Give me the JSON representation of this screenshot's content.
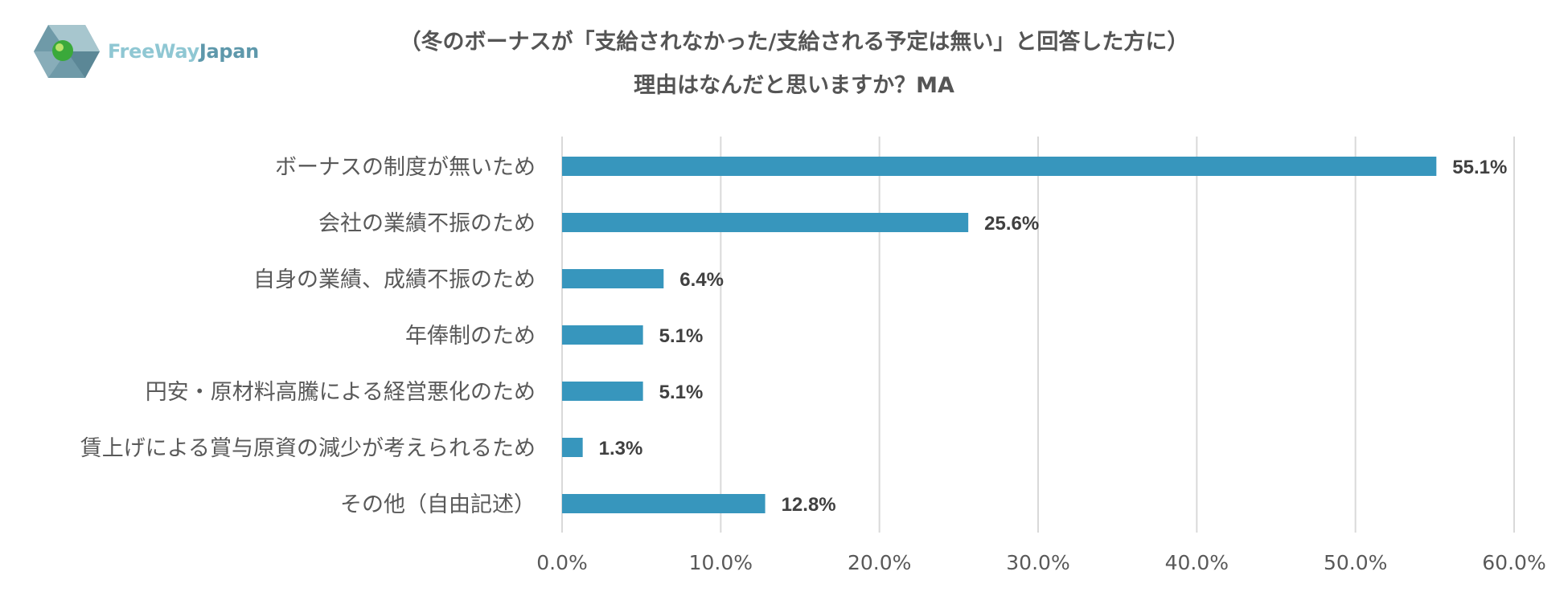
{
  "brand": {
    "name_part1": "FreeWay",
    "name_part2": "Japan"
  },
  "title": {
    "line1": "（冬のボーナスが「支給されなかった/支給される予定は無い」と回答した方に）",
    "line2": "理由はなんだと思いますか？MA"
  },
  "colors": {
    "bar": "#3796bd",
    "grid": "#d9d9d9",
    "category_text": "#595959",
    "value_text": "#404040",
    "tick_text": "#595959"
  },
  "chart_data": {
    "type": "bar",
    "orientation": "horizontal",
    "categories": [
      "ボーナスの制度が無いため",
      "会社の業績不振のため",
      "自身の業績、成績不振のため",
      "年俸制のため",
      "円安・原材料高騰による経営悪化のため",
      "賃上げによる賞与原資の減少が考えられるため",
      "その他（自由記述）"
    ],
    "values": [
      55.1,
      25.6,
      6.4,
      5.1,
      5.1,
      1.3,
      12.8
    ],
    "value_labels": [
      "55.1%",
      "25.6%",
      "6.4%",
      "5.1%",
      "5.1%",
      "1.3%",
      "12.8%"
    ],
    "xlim": [
      0,
      60
    ],
    "xticks": [
      0,
      10,
      20,
      30,
      40,
      50,
      60
    ],
    "xtick_labels": [
      "0.0%",
      "10.0%",
      "20.0%",
      "30.0%",
      "40.0%",
      "50.0%",
      "60.0%"
    ],
    "grid": true,
    "legend": "none"
  }
}
